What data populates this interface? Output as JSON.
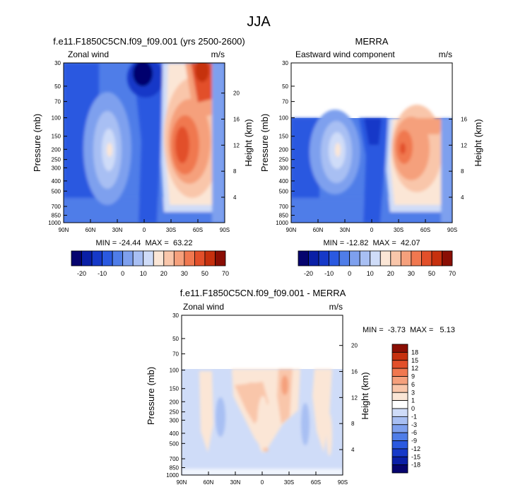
{
  "figure_title": "JJA",
  "panels": [
    {
      "title": "f.e11.F1850C5CN.f09_f09.001 (yrs 2500-2600)",
      "left_label": "Zonal wind",
      "units": "m/s",
      "ylabel": "Pressure (mb)",
      "ylabel_right": "Height (km)",
      "pressure_ticks": [
        "30",
        "50",
        "70",
        "100",
        "150",
        "200",
        "250",
        "300",
        "400",
        "500",
        "700",
        "850",
        "1000"
      ],
      "height_ticks": [
        "20",
        "16",
        "12",
        "8",
        "4"
      ],
      "lat_ticks": [
        "90N",
        "60N",
        "30N",
        "0",
        "30S",
        "60S",
        "90S"
      ],
      "stats": "MIN = -24.44  MAX =  63.22"
    },
    {
      "title": "MERRA",
      "left_label": "Eastward wind component",
      "units": "m/s",
      "ylabel": "Pressure (mb)",
      "ylabel_right": "Height (km)",
      "pressure_ticks": [
        "30",
        "50",
        "70",
        "100",
        "150",
        "200",
        "250",
        "300",
        "400",
        "500",
        "700",
        "850",
        "1000"
      ],
      "height_ticks": [
        "16",
        "12",
        "8",
        "4"
      ],
      "lat_ticks": [
        "90N",
        "60N",
        "30N",
        "0",
        "30S",
        "60S",
        "90S"
      ],
      "stats": "MIN = -12.82  MAX =  42.07"
    },
    {
      "title": "f.e11.F1850C5CN.f09_f09.001 - MERRA",
      "left_label": "Zonal wind",
      "units": "m/s",
      "ylabel": "Pressure (mb)",
      "ylabel_right": "Height (km)",
      "pressure_ticks": [
        "30",
        "50",
        "70",
        "100",
        "150",
        "200",
        "250",
        "300",
        "400",
        "500",
        "700",
        "850",
        "1000"
      ],
      "height_ticks": [
        "20",
        "16",
        "12",
        "8",
        "4"
      ],
      "lat_ticks": [
        "90N",
        "60N",
        "30N",
        "0",
        "30S",
        "60S",
        "90S"
      ],
      "stats": "MIN =  -3.73  MAX =   5.13"
    }
  ],
  "colorbar_top": {
    "labels": [
      "-20",
      "-10",
      "0",
      "10",
      "20",
      "30",
      "50",
      "70"
    ],
    "colors": [
      "#06046e",
      "#0a1fa6",
      "#1639c8",
      "#2a59e0",
      "#4f7de8",
      "#7ea0ee",
      "#a8bff3",
      "#cfdcf8",
      "#fbe6d6",
      "#f9c6aa",
      "#f5a07c",
      "#f07850",
      "#e24f2a",
      "#c6300e",
      "#8a0e04"
    ]
  },
  "colorbar_diff": {
    "labels": [
      "18",
      "15",
      "12",
      "9",
      "6",
      "3",
      "1",
      "0",
      "-1",
      "-3",
      "-6",
      "-9",
      "-12",
      "-15",
      "-18"
    ],
    "colors": [
      "#8a0e04",
      "#c6300e",
      "#e24f2a",
      "#f07850",
      "#f5a07c",
      "#f9c6aa",
      "#fbe6d6",
      "#ffffff",
      "#cfdcf8",
      "#a8bff3",
      "#7ea0ee",
      "#4f7de8",
      "#2a59e0",
      "#1639c8",
      "#0a1fa6",
      "#06046e"
    ]
  },
  "chart_data": [
    {
      "type": "heatmap",
      "title": "f.e11.F1850C5CN.f09_f09.001 (yrs 2500-2600)",
      "variable": "Zonal wind",
      "units": "m/s",
      "x": [
        "90N",
        "60N",
        "30N",
        "0",
        "30S",
        "60S",
        "90S"
      ],
      "xlim": [
        -90,
        90
      ],
      "ylabel": "Pressure (mb)",
      "ylim": [
        1000,
        30
      ],
      "yscale": "log",
      "y2label": "Height (km)",
      "contour_levels": [
        -20,
        -15,
        -10,
        -5,
        0,
        5,
        10,
        15,
        20,
        25,
        30,
        40,
        50,
        60,
        70
      ],
      "min": -24.44,
      "max": 63.22
    },
    {
      "type": "heatmap",
      "title": "MERRA",
      "variable": "Eastward wind component",
      "units": "m/s",
      "x": [
        "90N",
        "60N",
        "30N",
        "0",
        "30S",
        "60S",
        "90S"
      ],
      "xlim": [
        -90,
        90
      ],
      "ylabel": "Pressure (mb)",
      "ylim": [
        1000,
        30
      ],
      "yscale": "log",
      "data_top_pressure": 100,
      "y2label": "Height (km)",
      "contour_levels": [
        -20,
        -15,
        -10,
        -5,
        0,
        5,
        10,
        15,
        20,
        25,
        30,
        40,
        50,
        60,
        70
      ],
      "min": -12.82,
      "max": 42.07
    },
    {
      "type": "heatmap",
      "title": "f.e11.F1850C5CN.f09_f09.001 - MERRA",
      "variable": "Zonal wind",
      "units": "m/s",
      "x": [
        "90N",
        "60N",
        "30N",
        "0",
        "30S",
        "60S",
        "90S"
      ],
      "xlim": [
        -90,
        90
      ],
      "ylabel": "Pressure (mb)",
      "ylim": [
        1000,
        30
      ],
      "yscale": "log",
      "data_top_pressure": 100,
      "y2label": "Height (km)",
      "contour_levels": [
        -18,
        -15,
        -12,
        -9,
        -6,
        -3,
        -1,
        0,
        1,
        3,
        6,
        9,
        12,
        15,
        18
      ],
      "min": -3.73,
      "max": 5.13
    }
  ]
}
